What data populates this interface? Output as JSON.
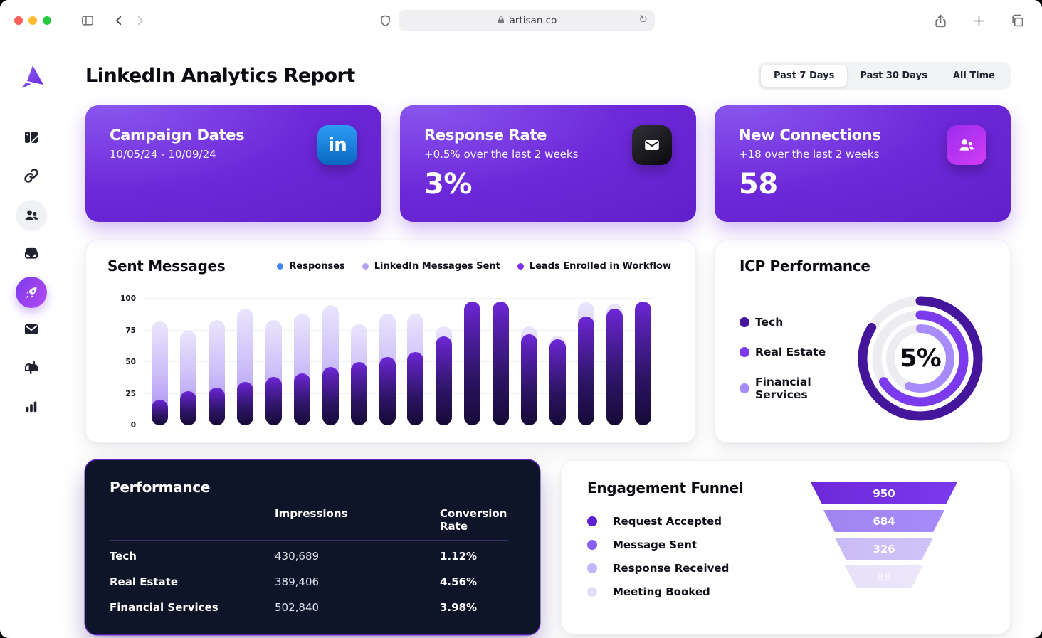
{
  "browser": {
    "url": "artisan.co"
  },
  "sidebar": {
    "icons": [
      "artisan-logo",
      "cards-icon",
      "link-icon",
      "people-icon",
      "inbox-icon",
      "rocket-icon",
      "mail-icon",
      "mailbox-icon",
      "bar-chart-icon"
    ],
    "active": "rocket-icon"
  },
  "header": {
    "title": "LinkedIn Analytics Report",
    "filters": [
      "Past 7 Days",
      "Past 30 Days",
      "All Time"
    ],
    "active_filter": "Past 7 Days"
  },
  "kpis": [
    {
      "title": "Campaign Dates",
      "subtitle": "10/05/24 - 10/09/24",
      "value": "",
      "icon": "linkedin-icon",
      "icon_text": "in"
    },
    {
      "title": "Response Rate",
      "subtitle": "+0.5% over the last 2 weeks",
      "value": "3%",
      "icon": "mail-icon"
    },
    {
      "title": "New Connections",
      "subtitle": "+18 over the last 2 weeks",
      "value": "58",
      "icon": "people-icon"
    }
  ],
  "chart_data": [
    {
      "id": "sent_messages",
      "type": "bar",
      "title": "Sent Messages",
      "stacked": true,
      "grid": true,
      "legend_position": "top-right",
      "legend": [
        {
          "label": "Responses",
          "color": "#4285f4"
        },
        {
          "label": "LinkedIn Messages Sent",
          "color": "#b4a2f3"
        },
        {
          "label": "Leads Enrolled in Workflow",
          "color": "#7a2ee8"
        }
      ],
      "ylim": [
        0,
        100
      ],
      "y_ticks": [
        0,
        25,
        50,
        75,
        100
      ],
      "x_labels": [],
      "series": [
        {
          "name": "Leads Enrolled in Workflow",
          "color_gradient": [
            "#150a36",
            "#6d28d9"
          ],
          "values": [
            20,
            27,
            30,
            34,
            38,
            41,
            46,
            50,
            54,
            58,
            70,
            98,
            98,
            72,
            68,
            86,
            92,
            98
          ]
        },
        {
          "name": "LinkedIn Messages Sent",
          "color_gradient": [
            "#a78bf0",
            "#eae5fc"
          ],
          "values": [
            62,
            48,
            53,
            58,
            45,
            47,
            49,
            30,
            34,
            30,
            8,
            0,
            0,
            6,
            3,
            11,
            4,
            0
          ]
        },
        {
          "name": "Responses",
          "color": "#4285f4",
          "values": [
            0,
            0,
            0,
            0,
            0,
            0,
            0,
            0,
            0,
            0,
            0,
            0,
            0,
            0,
            0,
            0,
            0,
            0
          ]
        }
      ]
    },
    {
      "id": "icp_performance",
      "type": "donut",
      "title": "ICP Performance",
      "center_label": "5%",
      "track_color": "#ececf1",
      "segments": [
        {
          "label": "Tech",
          "color": "#45159b",
          "fraction": 0.84
        },
        {
          "label": "Real Estate",
          "color": "#7c3aed",
          "fraction": 0.66
        },
        {
          "label": "Financial Services",
          "color": "#a78bfa",
          "fraction": 0.56
        }
      ]
    },
    {
      "id": "engagement_funnel",
      "type": "funnel",
      "title": "Engagement Funnel",
      "stages": [
        {
          "label": "Request Accepted",
          "value": "950",
          "color": "#6d28d9",
          "color2": "#7c3aed",
          "dot": "#5e1fd0",
          "text": "#ffffff"
        },
        {
          "label": "Message Sent",
          "value": "684",
          "color": "#a184ef",
          "color2": "#a78bfa",
          "dot": "#8b5cf6",
          "text": "#ffffff"
        },
        {
          "label": "Response Received",
          "value": "326",
          "color": "#cabbf6",
          "color2": "#cfc3f8",
          "dot": "#c4b5fd",
          "text": "#ffffff"
        },
        {
          "label": "Meeting Booked",
          "value": "89",
          "color": "#e7e1f9",
          "color2": "#ece7fb",
          "dot": "#e4def6",
          "text": "#f4f1fd"
        }
      ]
    },
    {
      "id": "performance_table",
      "type": "table",
      "title": "Performance",
      "columns": [
        "Impressions",
        "Conversion Rate"
      ],
      "rows": [
        {
          "label": "Tech",
          "impressions": "430,689",
          "conversion": "1.12%"
        },
        {
          "label": "Real Estate",
          "impressions": "389,406",
          "conversion": "4.56%"
        },
        {
          "label": "Financial Services",
          "impressions": "502,840",
          "conversion": "3.98%"
        }
      ]
    }
  ],
  "performance": {
    "title": "Performance",
    "columns": [
      "Impressions",
      "Conversion Rate"
    ],
    "rows": [
      {
        "label": "Tech",
        "impressions": "430,689",
        "conversion": "1.12%"
      },
      {
        "label": "Real Estate",
        "impressions": "389,406",
        "conversion": "4.56%"
      },
      {
        "label": "Financial Services",
        "impressions": "502,840",
        "conversion": "3.98%"
      }
    ]
  },
  "colors": {
    "accent": "#6d28d9",
    "kpi_gradient": [
      "#8a56ef",
      "#5d1dc6"
    ],
    "dark_card": "#0e1529",
    "linkedin_blue": "#0a66c2",
    "traffic_lights": [
      "#ff5f57",
      "#febc2e",
      "#28c840"
    ]
  }
}
